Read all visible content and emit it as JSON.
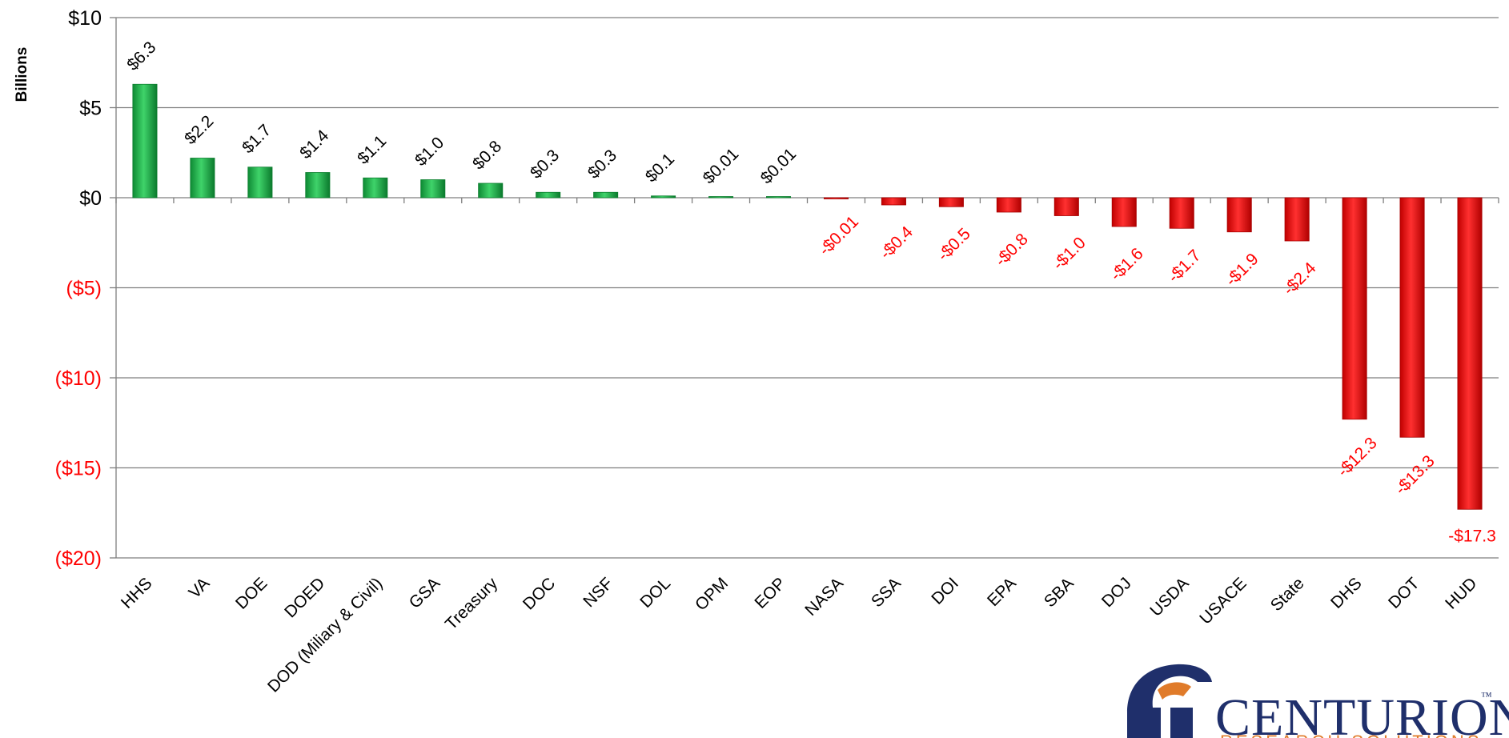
{
  "chart_data": {
    "type": "bar",
    "ylabel": "Billions",
    "ylim": [
      -20,
      10
    ],
    "y_ticks": [
      {
        "value": 10,
        "label": "$10"
      },
      {
        "value": 5,
        "label": "$5"
      },
      {
        "value": 0,
        "label": "$0"
      },
      {
        "value": -5,
        "label": "($5)"
      },
      {
        "value": -10,
        "label": "($10)"
      },
      {
        "value": -15,
        "label": "($15)"
      },
      {
        "value": -20,
        "label": "($20)"
      }
    ],
    "grid": true,
    "categories": [
      "HHS",
      "VA",
      "DOE",
      "DOED",
      "DOD (Miliary & Civil)",
      "GSA",
      "Treasury",
      "DOC",
      "NSF",
      "DOL",
      "OPM",
      "EOP",
      "NASA",
      "SSA",
      "DOI",
      "EPA",
      "SBA",
      "DOJ",
      "USDA",
      "USACE",
      "State",
      "DHS",
      "DOT",
      "HUD"
    ],
    "values": [
      6.3,
      2.2,
      1.7,
      1.4,
      1.1,
      1.0,
      0.8,
      0.3,
      0.3,
      0.1,
      0.01,
      0.01,
      -0.01,
      -0.4,
      -0.5,
      -0.8,
      -1.0,
      -1.6,
      -1.7,
      -1.9,
      -2.4,
      -12.3,
      -13.3,
      -17.3
    ],
    "data_labels": [
      "$6.3",
      "$2.2",
      "$1.7",
      "$1.4",
      "$1.1",
      "$1.0",
      "$0.8",
      "$0.3",
      "$0.3",
      "$0.1",
      "$0.01",
      "$0.01",
      "-$0.01",
      "-$0.4",
      "-$0.5",
      "-$0.8",
      "-$1.0",
      "-$1.6",
      "-$1.7",
      "-$1.9",
      "-$2.4",
      "-$12.3",
      "-$13.3",
      "-$17.3"
    ],
    "colors": {
      "positive": "#1db54a",
      "positive_dark": "#0e7f30",
      "negative": "#ee1111",
      "negative_dark": "#a80000",
      "negative_text": "#ff0000",
      "positive_text": "#000000",
      "grid": "#7f7f7f"
    }
  },
  "logo": {
    "name": "CENTURION",
    "trademark": "™",
    "tagline": "RESEARCH SOLUTIONS",
    "primary_color": "#1f2f6b",
    "accent_color": "#e07b2a",
    "icon": "spartan-helmet-icon"
  }
}
